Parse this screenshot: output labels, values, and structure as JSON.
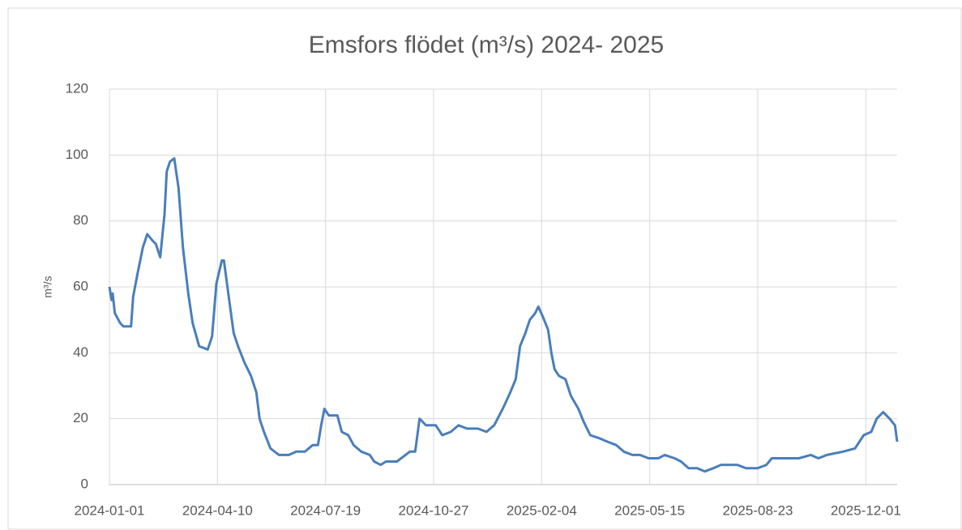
{
  "chart_data": {
    "type": "line",
    "title": "Emsfors flödet (m³/s) 2024- 2025",
    "y_label": "m³/s",
    "x": [
      "2024-01-01",
      "2024-01-03",
      "2024-01-04",
      "2024-01-06",
      "2024-01-11",
      "2024-01-14",
      "2024-01-21",
      "2024-01-23",
      "2024-01-27",
      "2024-02-01",
      "2024-02-05",
      "2024-02-10",
      "2024-02-13",
      "2024-02-17",
      "2024-02-21",
      "2024-02-23",
      "2024-02-26",
      "2024-03-01",
      "2024-03-05",
      "2024-03-09",
      "2024-03-14",
      "2024-03-18",
      "2024-03-24",
      "2024-04-01",
      "2024-04-05",
      "2024-04-09",
      "2024-04-14",
      "2024-04-16",
      "2024-04-20",
      "2024-04-25",
      "2024-04-29",
      "2024-05-05",
      "2024-05-11",
      "2024-05-16",
      "2024-05-19",
      "2024-05-23",
      "2024-05-29",
      "2024-06-06",
      "2024-06-15",
      "2024-06-22",
      "2024-06-30",
      "2024-07-07",
      "2024-07-12",
      "2024-07-15",
      "2024-07-18",
      "2024-07-22",
      "2024-07-30",
      "2024-08-03",
      "2024-08-09",
      "2024-08-14",
      "2024-08-21",
      "2024-08-29",
      "2024-09-02",
      "2024-09-08",
      "2024-09-13",
      "2024-09-23",
      "2024-10-01",
      "2024-10-05",
      "2024-10-10",
      "2024-10-14",
      "2024-10-20",
      "2024-10-29",
      "2024-11-04",
      "2024-11-12",
      "2024-11-19",
      "2024-11-27",
      "2024-12-07",
      "2024-12-15",
      "2024-12-22",
      "2024-12-30",
      "2025-01-06",
      "2025-01-11",
      "2025-01-15",
      "2025-01-20",
      "2025-01-24",
      "2025-01-29",
      "2025-02-01",
      "2025-02-05",
      "2025-02-10",
      "2025-02-13",
      "2025-02-16",
      "2025-02-20",
      "2025-02-26",
      "2025-03-03",
      "2025-03-10",
      "2025-03-15",
      "2025-03-21",
      "2025-03-30",
      "2025-04-06",
      "2025-04-14",
      "2025-04-21",
      "2025-04-29",
      "2025-05-06",
      "2025-05-14",
      "2025-05-23",
      "2025-05-29",
      "2025-06-07",
      "2025-06-13",
      "2025-06-20",
      "2025-06-28",
      "2025-07-05",
      "2025-07-13",
      "2025-07-20",
      "2025-07-28",
      "2025-08-04",
      "2025-08-12",
      "2025-08-23",
      "2025-08-31",
      "2025-09-05",
      "2025-09-15",
      "2025-09-30",
      "2025-10-11",
      "2025-10-18",
      "2025-10-26",
      "2025-11-10",
      "2025-11-21",
      "2025-11-29",
      "2025-12-06",
      "2025-12-11",
      "2025-12-17",
      "2025-12-23",
      "2025-12-28",
      "2025-12-30"
    ],
    "values": [
      60,
      56,
      58,
      52,
      49,
      48,
      48,
      57,
      64,
      72,
      76,
      74,
      73,
      69,
      82,
      95,
      98,
      99,
      90,
      72,
      58,
      49,
      42,
      41,
      45,
      61,
      68,
      68,
      58,
      46,
      42,
      37,
      33,
      28,
      20,
      16,
      11,
      9,
      9,
      10,
      10,
      12,
      12,
      18,
      23,
      21,
      21,
      16,
      15,
      12,
      10,
      9,
      7,
      6,
      7,
      7,
      9,
      10,
      10,
      20,
      18,
      18,
      15,
      16,
      18,
      17,
      17,
      16,
      18,
      23,
      28,
      32,
      42,
      46,
      50,
      52,
      54,
      51,
      47,
      40,
      35,
      33,
      32,
      27,
      23,
      19,
      15,
      14,
      13,
      12,
      10,
      9,
      9,
      8,
      8,
      9,
      8,
      7,
      5,
      5,
      4,
      5,
      6,
      6,
      6,
      5,
      5,
      6,
      8,
      8,
      8,
      9,
      8,
      9,
      10,
      11,
      15,
      16,
      20,
      22,
      20,
      18,
      13
    ],
    "color": "#4a7ebb",
    "xlim": [
      "2024-01-01",
      "2025-12-30"
    ],
    "xticks": [
      "2024-01-01",
      "2024-04-10",
      "2024-07-19",
      "2024-10-27",
      "2025-02-04",
      "2025-05-15",
      "2025-08-23",
      "2025-12-01"
    ],
    "ylim": [
      0,
      120
    ],
    "yticks": [
      0,
      20,
      40,
      60,
      80,
      100,
      120
    ],
    "grid": true
  }
}
